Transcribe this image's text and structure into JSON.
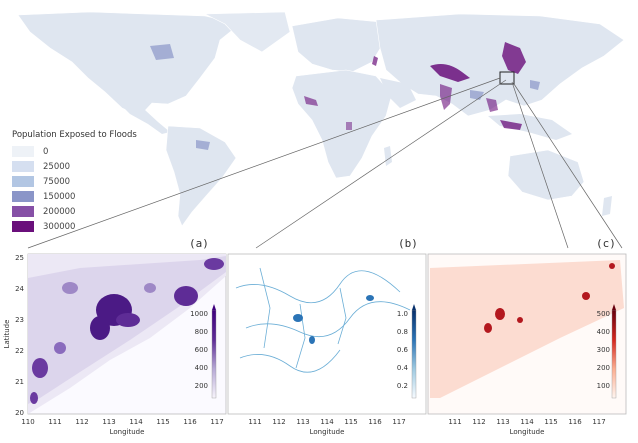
{
  "legend": {
    "title": "Population Exposed to Floods",
    "items": [
      {
        "label": "0",
        "color": "#eef2f7"
      },
      {
        "label": "25000",
        "color": "#d5dff0"
      },
      {
        "label": "75000",
        "color": "#b2c6e3"
      },
      {
        "label": "150000",
        "color": "#8a95c8"
      },
      {
        "label": "200000",
        "color": "#8650a6"
      },
      {
        "label": "300000",
        "color": "#6a0f7b"
      }
    ]
  },
  "panels": [
    {
      "id": "a",
      "label": "(a)",
      "colorbar_ticks": [
        "1000",
        "800",
        "600",
        "400",
        "200"
      ],
      "colors": [
        "#f7f4fb",
        "#b7a9d6",
        "#5e2c96",
        "#3f007d"
      ]
    },
    {
      "id": "b",
      "label": "(b)",
      "colorbar_ticks": [
        "1.0",
        "0.8",
        "0.6",
        "0.4",
        "0.2"
      ],
      "colors": [
        "#f7fbff",
        "#9ecae1",
        "#2b74b6",
        "#08306b"
      ]
    },
    {
      "id": "c",
      "label": "(c)",
      "colorbar_ticks": [
        "500",
        "400",
        "300",
        "200",
        "100"
      ],
      "colors": [
        "#fff5f0",
        "#fcae91",
        "#d4271e",
        "#67000d"
      ]
    }
  ],
  "axes": {
    "xlabel": "Longitude",
    "ylabel": "Latitude",
    "x_ticks": [
      "110",
      "111",
      "112",
      "113",
      "114",
      "115",
      "116",
      "117"
    ],
    "x_ticks_inner": [
      "111",
      "112",
      "113",
      "114",
      "115",
      "116",
      "117"
    ],
    "y_ticks": [
      "25",
      "24",
      "23",
      "22",
      "21",
      "20"
    ]
  }
}
